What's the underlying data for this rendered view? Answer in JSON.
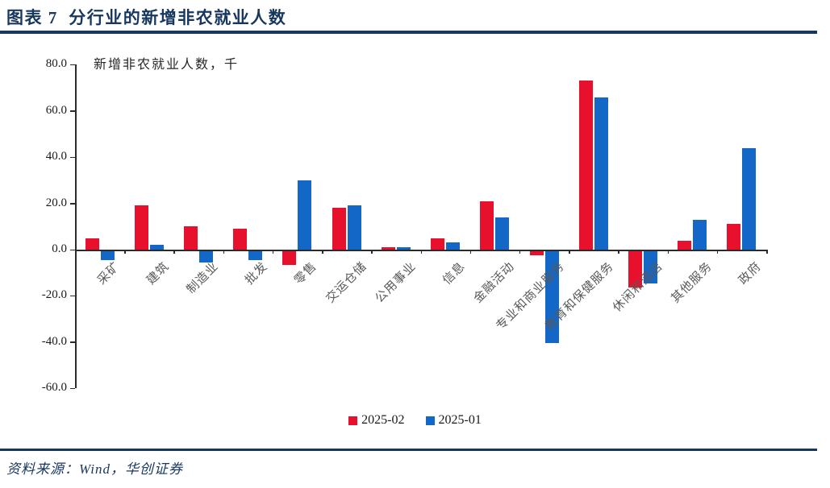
{
  "header": {
    "title": "图表 7  分行业的新增非农就业人数"
  },
  "theme": {
    "accent_navy": "#17375e",
    "series_red": "#e8112d",
    "series_blue": "#1267c7",
    "label_gray": "#595959"
  },
  "chart_data": {
    "type": "bar",
    "title": "图表 7  分行业的新增非农就业人数",
    "annotation": "新增非农就业人数，千",
    "xlabel": "",
    "ylabel": "新增非农就业人数，千",
    "categories": [
      "采矿",
      "建筑",
      "制造业",
      "批发",
      "零售",
      "交运仓储",
      "公用事业",
      "信息",
      "金融活动",
      "专业和商业服务",
      "教育和保健服务",
      "休闲和酒店",
      "其他服务",
      "政府"
    ],
    "series": [
      {
        "name": "2025-02",
        "color": "#e8112d",
        "values": [
          5,
          19,
          10,
          9,
          -6,
          18,
          1,
          5,
          21,
          -2,
          73,
          -16,
          4,
          11
        ]
      },
      {
        "name": "2025-01",
        "color": "#1267c7",
        "values": [
          -4,
          2,
          -5,
          -4,
          30,
          19,
          1,
          3,
          14,
          -40,
          66,
          -14,
          13,
          44
        ]
      }
    ],
    "ylim": [
      -60,
      80
    ],
    "ytick_step": 20,
    "ytick_labels": [
      "80.0",
      "60.0",
      "40.0",
      "20.0",
      "0.0",
      "-20.0",
      "-40.0",
      "-60.0"
    ],
    "grid": "off",
    "legend_position": "bottom"
  },
  "footer": {
    "source": "资料来源：Wind，华创证券"
  }
}
